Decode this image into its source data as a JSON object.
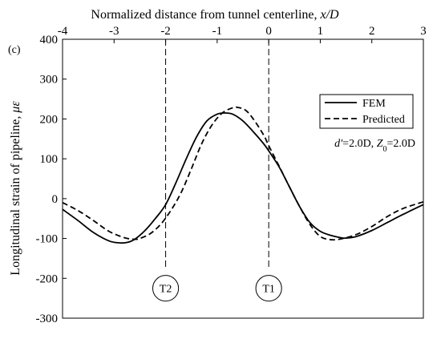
{
  "chart_data": {
    "type": "line",
    "panel_label": "(c)",
    "xlabel": "Normalized distance from tunnel centerline, x/D",
    "xlabel_prefix": "Normalized distance from tunnel centerline, ",
    "xlabel_var": "x/D",
    "ylabel_prefix": "Longitudinal strain of pipeline, ",
    "ylabel_var": "με",
    "xlim": [
      -4,
      3
    ],
    "ylim": [
      -300,
      400
    ],
    "x_ticks": [
      -4,
      -3,
      -2,
      -1,
      0,
      1,
      2,
      3
    ],
    "x_tick_labels": [
      "-4",
      "-3",
      "-2",
      "-1",
      "0",
      "1",
      "2",
      "3"
    ],
    "y_ticks": [
      -300,
      -200,
      -100,
      0,
      100,
      200,
      300,
      400
    ],
    "y_tick_labels": [
      "-300",
      "-200",
      "-100",
      "0",
      "100",
      "200",
      "300",
      "400"
    ],
    "grid": false,
    "legend_position": "top-right",
    "series": [
      {
        "name": "FEM",
        "style": "solid",
        "color": "#000000",
        "x": [
          -4.0,
          -3.7,
          -3.4,
          -3.1,
          -2.9,
          -2.75,
          -2.6,
          -2.4,
          -2.2,
          -2.0,
          -1.8,
          -1.6,
          -1.4,
          -1.2,
          -1.0,
          -0.85,
          -0.7,
          -0.5,
          -0.3,
          -0.1,
          0.0,
          0.2,
          0.4,
          0.6,
          0.8,
          1.0,
          1.2,
          1.4,
          1.5,
          1.7,
          2.0,
          2.3,
          2.6,
          3.0
        ],
        "y": [
          -27,
          -55,
          -85,
          -106,
          -111,
          -110,
          -102,
          -80,
          -50,
          -15,
          40,
          100,
          155,
          195,
          212,
          215,
          212,
          195,
          168,
          138,
          120,
          80,
          30,
          -20,
          -60,
          -82,
          -92,
          -98,
          -99,
          -95,
          -80,
          -60,
          -40,
          -15
        ]
      },
      {
        "name": "Predicted",
        "style": "dashed",
        "color": "#000000",
        "x": [
          -4.0,
          -3.7,
          -3.4,
          -3.1,
          -2.8,
          -2.6,
          -2.5,
          -2.3,
          -2.1,
          -1.9,
          -1.7,
          -1.5,
          -1.3,
          -1.1,
          -0.9,
          -0.7,
          -0.6,
          -0.45,
          -0.3,
          -0.1,
          0.0,
          0.2,
          0.4,
          0.6,
          0.8,
          1.0,
          1.2,
          1.4,
          1.7,
          2.0,
          2.3,
          2.6,
          3.0
        ],
        "y": [
          -10,
          -30,
          -55,
          -82,
          -98,
          -102,
          -100,
          -88,
          -65,
          -30,
          15,
          75,
          138,
          185,
          215,
          228,
          229,
          222,
          200,
          160,
          133,
          82,
          30,
          -20,
          -65,
          -95,
          -103,
          -101,
          -90,
          -70,
          -45,
          -25,
          -8
        ]
      }
    ],
    "annotation": {
      "d_var": "d'",
      "d_val": "=2.0D, ",
      "z_var": "Z",
      "z_sub": "0",
      "z_val": "=2.0D"
    },
    "tunnels": [
      {
        "label": "T2",
        "x": -2,
        "center_y": -225,
        "radius_x": 0.25
      },
      {
        "label": "T1",
        "x": 0,
        "center_y": -225,
        "radius_x": 0.25
      }
    ],
    "guide_lines": [
      {
        "x": -2,
        "y_from": 400,
        "y_to": -175
      },
      {
        "x": 0,
        "y_from": 400,
        "y_to": -175
      }
    ]
  }
}
